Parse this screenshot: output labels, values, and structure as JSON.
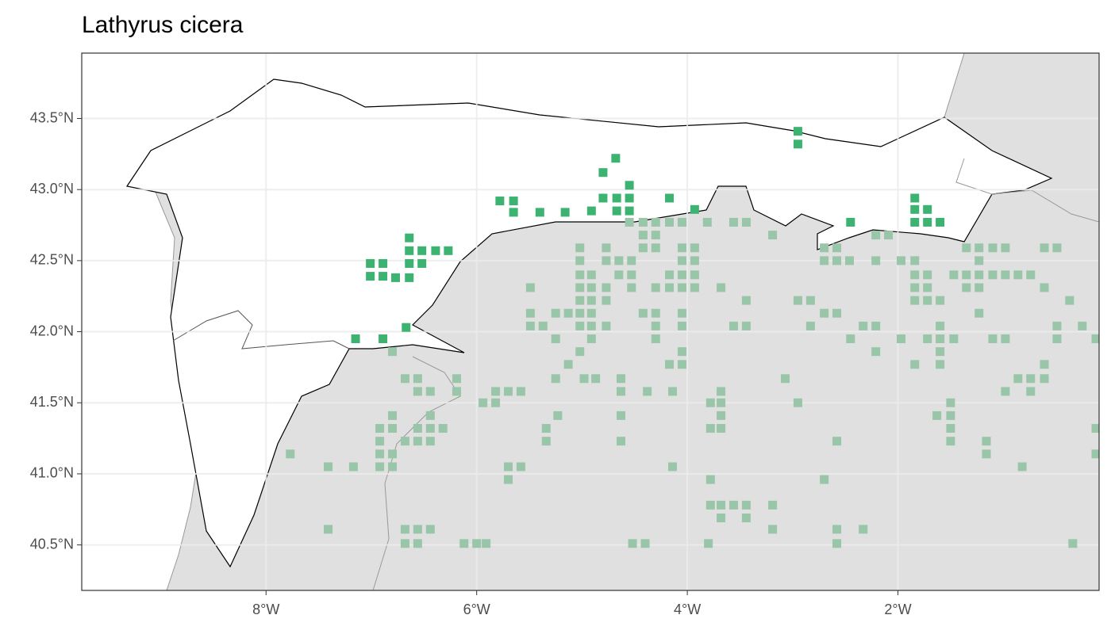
{
  "chart_data": {
    "type": "scatter",
    "title": "Lathyrus cicera",
    "xlim": [
      -9.75,
      -0.09
    ],
    "ylim": [
      40.18,
      43.96
    ],
    "xticks": [
      {
        "value": -8,
        "label": "8°W"
      },
      {
        "value": -6,
        "label": "6°W"
      },
      {
        "value": -4,
        "label": "4°W"
      },
      {
        "value": -2,
        "label": "2°W"
      }
    ],
    "yticks": [
      {
        "value": 40.5,
        "label": "40.5°N"
      },
      {
        "value": 41.0,
        "label": "41.0°N"
      },
      {
        "value": 41.5,
        "label": "41.5°N"
      },
      {
        "value": 42.0,
        "label": "42.0°N"
      },
      {
        "value": 42.5,
        "label": "42.5°N"
      },
      {
        "value": 43.0,
        "label": "43.0°N"
      },
      {
        "value": 43.5,
        "label": "43.5°N"
      }
    ],
    "grid": true,
    "series": [
      {
        "color": "#99c5a9",
        "x": [
          -4.55,
          -4.42,
          -4.3,
          -4.17,
          -4.05,
          -3.81,
          -3.56,
          -3.44,
          -4.42,
          -4.3,
          -3.19,
          -2.09,
          -2.21,
          -5.02,
          -4.77,
          -4.42,
          -4.3,
          -4.05,
          -3.93,
          -2.7,
          -2.58,
          -1.35,
          -1.23,
          -1.1,
          -0.98,
          -0.61,
          -0.49,
          -5.02,
          -4.77,
          -4.65,
          -4.53,
          -4.05,
          -3.93,
          -2.7,
          -2.58,
          -2.46,
          -2.21,
          -1.97,
          -1.84,
          -1.23,
          -5.02,
          -4.91,
          -4.65,
          -4.53,
          -4.17,
          -4.05,
          -3.93,
          -1.84,
          -1.72,
          -1.47,
          -1.35,
          -1.23,
          -1.1,
          -0.98,
          -0.86,
          -0.74,
          -5.49,
          -5.02,
          -4.91,
          -4.77,
          -4.53,
          -4.3,
          -4.17,
          -4.05,
          -3.93,
          -3.68,
          -1.84,
          -1.72,
          -1.35,
          -1.23,
          -0.61,
          -5.02,
          -4.91,
          -4.77,
          -3.44,
          -2.95,
          -2.83,
          -1.84,
          -1.72,
          -1.6,
          -0.37,
          -5.49,
          -5.25,
          -5.13,
          -5.02,
          -4.91,
          -4.42,
          -4.3,
          -4.05,
          -2.7,
          -2.58,
          -1.23,
          -5.49,
          -5.37,
          -5.02,
          -4.91,
          -4.77,
          -4.3,
          -4.05,
          -3.56,
          -3.44,
          -2.83,
          -2.33,
          -2.21,
          -1.6,
          -0.49,
          -0.25,
          -5.25,
          -4.91,
          -4.3,
          -2.45,
          -1.97,
          -1.72,
          -1.6,
          -1.47,
          -1.1,
          -0.98,
          -0.49,
          -0.12,
          -6.8,
          -5.02,
          -4.05,
          -2.21,
          -1.6,
          -5.13,
          -4.17,
          -4.05,
          -1.84,
          -1.6,
          -0.61,
          -6.68,
          -6.56,
          -6.19,
          -5.25,
          -4.98,
          -4.87,
          -4.63,
          -3.07,
          -0.86,
          -0.74,
          -0.61,
          -6.56,
          -6.44,
          -6.19,
          -5.82,
          -5.7,
          -5.58,
          -4.63,
          -4.38,
          -4.14,
          -3.68,
          -0.98,
          -0.74,
          -5.94,
          -5.82,
          -3.78,
          -3.68,
          -2.95,
          -1.5,
          -6.8,
          -6.44,
          -5.23,
          -4.63,
          -3.68,
          -1.63,
          -1.5,
          -6.92,
          -6.8,
          -6.56,
          -6.44,
          -6.32,
          -5.34,
          -3.78,
          -3.68,
          -1.5,
          -0.12,
          -6.92,
          -6.68,
          -6.56,
          -6.44,
          -5.34,
          -4.63,
          -2.58,
          -1.5,
          -1.16,
          -7.77,
          -6.92,
          -6.8,
          -1.16,
          -0.12,
          -7.41,
          -7.17,
          -6.92,
          -6.8,
          -5.7,
          -5.58,
          -4.14,
          -0.82,
          -5.7,
          -3.78,
          -2.7,
          -3.78,
          -3.68,
          -3.56,
          -3.44,
          -3.19,
          -3.68,
          -3.44,
          -7.41,
          -6.68,
          -6.56,
          -6.44,
          -3.19,
          -2.58,
          -2.33,
          -6.68,
          -6.56,
          -6.12,
          -6.0,
          -5.91,
          -4.52,
          -4.4,
          -3.8,
          -2.58,
          -0.34
        ],
        "values": [
          42.77,
          42.77,
          42.77,
          42.77,
          42.77,
          42.77,
          42.77,
          42.77,
          42.68,
          42.68,
          42.68,
          42.68,
          42.68,
          42.59,
          42.59,
          42.59,
          42.59,
          42.59,
          42.59,
          42.59,
          42.59,
          42.59,
          42.59,
          42.59,
          42.59,
          42.59,
          42.59,
          42.5,
          42.5,
          42.5,
          42.5,
          42.5,
          42.5,
          42.5,
          42.5,
          42.5,
          42.5,
          42.5,
          42.5,
          42.5,
          42.4,
          42.4,
          42.4,
          42.4,
          42.4,
          42.4,
          42.4,
          42.4,
          42.4,
          42.4,
          42.4,
          42.4,
          42.4,
          42.4,
          42.4,
          42.4,
          42.31,
          42.31,
          42.31,
          42.31,
          42.31,
          42.31,
          42.31,
          42.31,
          42.31,
          42.31,
          42.31,
          42.31,
          42.31,
          42.31,
          42.31,
          42.22,
          42.22,
          42.22,
          42.22,
          42.22,
          42.22,
          42.22,
          42.22,
          42.22,
          42.22,
          42.13,
          42.13,
          42.13,
          42.13,
          42.13,
          42.13,
          42.13,
          42.13,
          42.13,
          42.13,
          42.13,
          42.04,
          42.04,
          42.04,
          42.04,
          42.04,
          42.04,
          42.04,
          42.04,
          42.04,
          42.04,
          42.04,
          42.04,
          42.04,
          42.04,
          42.04,
          41.95,
          41.95,
          41.95,
          41.95,
          41.95,
          41.95,
          41.95,
          41.95,
          41.95,
          41.95,
          41.95,
          41.95,
          41.86,
          41.86,
          41.86,
          41.86,
          41.86,
          41.77,
          41.77,
          41.77,
          41.77,
          41.77,
          41.77,
          41.67,
          41.67,
          41.67,
          41.67,
          41.67,
          41.67,
          41.67,
          41.67,
          41.67,
          41.67,
          41.67,
          41.58,
          41.58,
          41.58,
          41.58,
          41.58,
          41.58,
          41.58,
          41.58,
          41.58,
          41.58,
          41.58,
          41.58,
          41.5,
          41.5,
          41.5,
          41.5,
          41.5,
          41.5,
          41.41,
          41.41,
          41.41,
          41.41,
          41.41,
          41.41,
          41.41,
          41.32,
          41.32,
          41.32,
          41.32,
          41.32,
          41.32,
          41.32,
          41.32,
          41.32,
          41.32,
          41.23,
          41.23,
          41.23,
          41.23,
          41.23,
          41.23,
          41.23,
          41.23,
          41.23,
          41.14,
          41.14,
          41.14,
          41.14,
          41.14,
          41.05,
          41.05,
          41.05,
          41.05,
          41.05,
          41.05,
          41.05,
          41.05,
          40.96,
          40.96,
          40.96,
          40.78,
          40.78,
          40.78,
          40.78,
          40.78,
          40.69,
          40.69,
          40.61,
          40.61,
          40.61,
          40.61,
          40.61,
          40.61,
          40.61,
          40.51,
          40.51,
          40.51,
          40.51,
          40.51,
          40.51,
          40.51,
          40.51,
          40.51,
          40.51
        ]
      },
      {
        "color": "#3cb371",
        "x": [
          -2.95,
          -2.95,
          -4.68,
          -4.8,
          -4.55,
          -4.8,
          -4.67,
          -4.55,
          -4.17,
          -5.78,
          -5.65,
          -5.65,
          -5.4,
          -5.16,
          -4.91,
          -4.67,
          -4.55,
          -3.93,
          -1.84,
          -1.84,
          -1.72,
          -1.84,
          -1.72,
          -1.6,
          -2.45,
          -6.64,
          -6.64,
          -6.52,
          -6.39,
          -6.27,
          -6.64,
          -6.52,
          -7.01,
          -6.89,
          -7.01,
          -6.89,
          -6.77,
          -6.64,
          -7.15,
          -6.89,
          -6.67
        ],
        "values": [
          43.41,
          43.32,
          43.22,
          43.12,
          43.03,
          42.94,
          42.94,
          42.94,
          42.94,
          42.92,
          42.92,
          42.84,
          42.84,
          42.84,
          42.85,
          42.85,
          42.85,
          42.86,
          42.94,
          42.86,
          42.86,
          42.77,
          42.77,
          42.77,
          42.77,
          42.66,
          42.57,
          42.57,
          42.57,
          42.57,
          42.48,
          42.48,
          42.48,
          42.48,
          42.39,
          42.39,
          42.38,
          42.38,
          41.95,
          41.95,
          42.03
        ]
      }
    ]
  }
}
